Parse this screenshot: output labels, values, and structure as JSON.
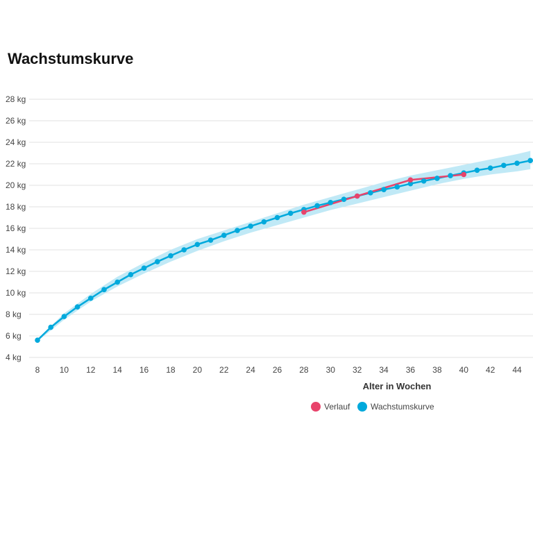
{
  "chart_data": {
    "type": "line",
    "title": "Wachstumskurve",
    "xlabel": "Alter in Wochen",
    "ylabel": "",
    "xlim": [
      8,
      45
    ],
    "ylim": [
      4,
      28
    ],
    "x_ticks": [
      "8",
      "10",
      "12",
      "14",
      "16",
      "18",
      "20",
      "22",
      "24",
      "26",
      "28",
      "30",
      "32",
      "34",
      "36",
      "38",
      "40",
      "42",
      "44"
    ],
    "y_ticks": [
      "4 kg",
      "6 kg",
      "8 kg",
      "10 kg",
      "12 kg",
      "14 kg",
      "16 kg",
      "18 kg",
      "20 kg",
      "22 kg",
      "24 kg",
      "26 kg",
      "28 kg"
    ],
    "grid": true,
    "legend_position": "bottom",
    "band": {
      "x": [
        8,
        10,
        12,
        14,
        16,
        18,
        20,
        22,
        24,
        26,
        28,
        30,
        32,
        34,
        36,
        38,
        40,
        42,
        44,
        45
      ],
      "lower": [
        5.5,
        7.5,
        9.2,
        10.6,
        11.8,
        12.9,
        13.9,
        14.8,
        15.6,
        16.3,
        17.0,
        17.7,
        18.3,
        18.9,
        19.5,
        20.1,
        20.6,
        21.0,
        21.3,
        21.5
      ],
      "upper": [
        5.7,
        8.1,
        9.9,
        11.5,
        12.8,
        14.0,
        15.0,
        15.8,
        16.6,
        17.4,
        18.2,
        18.9,
        19.6,
        20.3,
        20.9,
        21.4,
        21.9,
        22.4,
        22.9,
        23.2
      ]
    },
    "series": [
      {
        "name": "Wachstumskurve",
        "color": "#00a9dc",
        "x": [
          8,
          9,
          10,
          11,
          12,
          13,
          14,
          15,
          16,
          17,
          18,
          19,
          20,
          21,
          22,
          23,
          24,
          25,
          26,
          27,
          28,
          29,
          30,
          31,
          32,
          33,
          34,
          35,
          36,
          37,
          38,
          39,
          40,
          41,
          42,
          43,
          44,
          45
        ],
        "y": [
          5.6,
          6.8,
          7.8,
          8.7,
          9.5,
          10.3,
          11.0,
          11.7,
          12.3,
          12.9,
          13.45,
          14.0,
          14.5,
          14.9,
          15.35,
          15.8,
          16.2,
          16.6,
          17.0,
          17.4,
          17.75,
          18.1,
          18.4,
          18.7,
          19.0,
          19.3,
          19.6,
          19.85,
          20.15,
          20.4,
          20.65,
          20.9,
          21.15,
          21.4,
          21.6,
          21.85,
          22.05,
          22.3
        ]
      },
      {
        "name": "Verlauf",
        "color": "#e8436b",
        "x": [
          28,
          32,
          36,
          40
        ],
        "y": [
          17.5,
          19.0,
          20.5,
          21.0
        ]
      }
    ]
  }
}
